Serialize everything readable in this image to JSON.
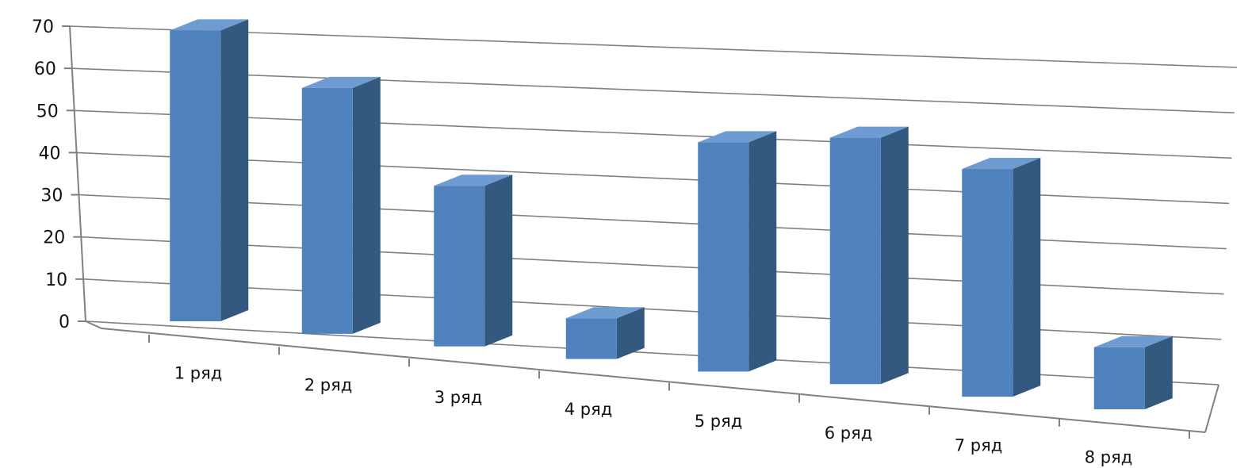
{
  "chart_data": {
    "type": "bar",
    "three_d": true,
    "title": "",
    "xlabel": "",
    "ylabel": "",
    "categories": [
      "1 ряд",
      "2 ряд",
      "3 ряд",
      "4 ряд",
      "5 ряд",
      "6 ряд",
      "7 ряд",
      "8 ряд"
    ],
    "values": [
      69,
      59,
      39,
      10,
      57,
      62,
      58,
      16
    ],
    "ylim": [
      0,
      70
    ],
    "yticks": [
      "0",
      "10",
      "20",
      "30",
      "40",
      "50",
      "60",
      "70"
    ],
    "grid": true,
    "legend": "none",
    "colors": {
      "bar_front": "#4f81bd",
      "bar_side": "#34597f",
      "bar_top": "#6f9bd3",
      "grid": "#808080",
      "axis": "#808080"
    }
  }
}
